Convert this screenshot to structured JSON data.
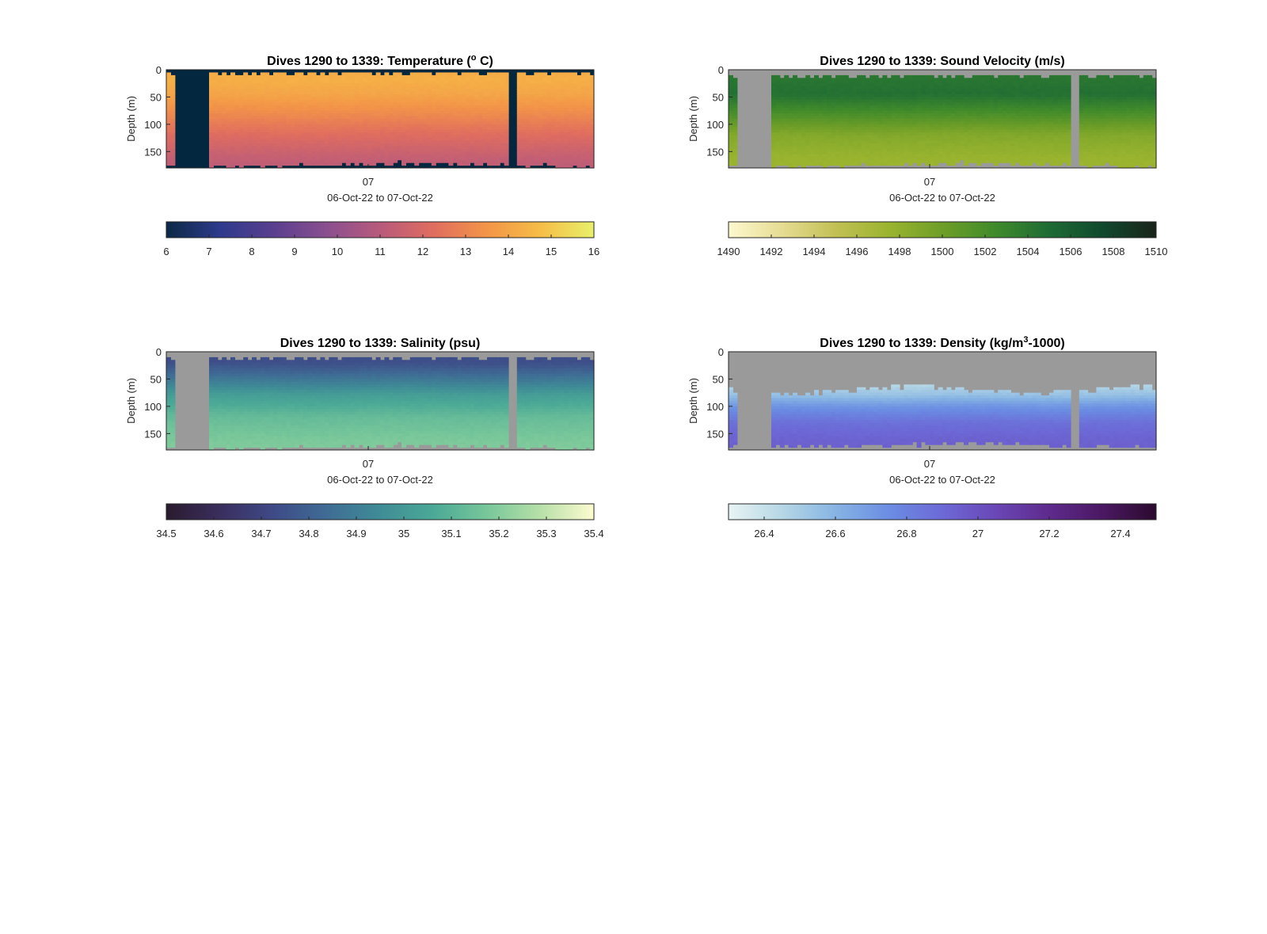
{
  "chart_data": [
    {
      "type": "heatmap",
      "title_prefix": "Dives 1290 to 1339: Temperature (",
      "title_sup": "o",
      "title_suffix": " C)",
      "ylabel": "Depth (m)",
      "yticks": [
        "0",
        "50",
        "100",
        "150"
      ],
      "ylim": [
        0,
        180
      ],
      "y_reversed": true,
      "xtick": "07",
      "xlabel": "06-Oct-22 to 07-Oct-22",
      "colorbar": {
        "range": [
          6,
          16
        ],
        "ticks": [
          "6",
          "7",
          "8",
          "9",
          "10",
          "11",
          "12",
          "13",
          "14",
          "15",
          "16"
        ]
      },
      "colormap": [
        "#0b2945",
        "#2e3a8c",
        "#5a3e8f",
        "#8a4f8f",
        "#b85a7c",
        "#e06d5f",
        "#f39548",
        "#f6bd47",
        "#e8f06a"
      ],
      "missing_color": "#042740",
      "profile": {
        "depths": [
          0,
          20,
          45,
          80,
          120,
          160,
          180
        ],
        "values": [
          14.2,
          14.3,
          14.0,
          13.2,
          12.2,
          11.4,
          11.2
        ]
      },
      "gaps": [
        [
          0.02,
          0.1
        ],
        [
          0.8,
          0.82
        ]
      ],
      "surface_gap_m": 8,
      "bottom_m": 175
    },
    {
      "type": "heatmap",
      "title": "Dives 1290 to 1339: Sound Velocity (m/s)",
      "ylabel": "Depth (m)",
      "yticks": [
        "0",
        "50",
        "100",
        "150"
      ],
      "ylim": [
        0,
        180
      ],
      "y_reversed": true,
      "xtick": "07",
      "xlabel": "06-Oct-22 to 07-Oct-22",
      "colorbar": {
        "range": [
          1490,
          1510
        ],
        "ticks": [
          "1490",
          "1492",
          "1494",
          "1496",
          "1498",
          "1500",
          "1502",
          "1504",
          "1506",
          "1508",
          "1510"
        ]
      },
      "colormap": [
        "#fdf8cf",
        "#e6dc93",
        "#c2c054",
        "#9ab42f",
        "#6e9e28",
        "#3f8a2b",
        "#1e6b35",
        "#10492d",
        "#1a2319"
      ],
      "missing_color": "#9a9a9a",
      "profile": {
        "depths": [
          0,
          20,
          45,
          80,
          120,
          160,
          180
        ],
        "values": [
          1503.8,
          1504.2,
          1504.6,
          1502.0,
          1498.8,
          1497.6,
          1497.4
        ]
      },
      "gaps": [
        [
          0.02,
          0.1
        ],
        [
          0.8,
          0.82
        ]
      ],
      "surface_gap_m": 12,
      "bottom_m": 175
    },
    {
      "type": "heatmap",
      "title": "Dives 1290 to 1339: Salinity (psu)",
      "ylabel": "Depth (m)",
      "yticks": [
        "0",
        "50",
        "100",
        "150"
      ],
      "ylim": [
        0,
        180
      ],
      "y_reversed": true,
      "xtick": "07",
      "xlabel": "06-Oct-22 to 07-Oct-22",
      "colorbar": {
        "range": [
          34.5,
          35.4
        ],
        "ticks": [
          "34.5",
          "34.6",
          "34.7",
          "34.8",
          "34.9",
          "35",
          "35.1",
          "35.2",
          "35.3",
          "35.4"
        ]
      },
      "colormap": [
        "#2a1b2e",
        "#3a2e5e",
        "#3e4a87",
        "#3f6c95",
        "#3f8c96",
        "#4ba996",
        "#78c79a",
        "#b7e0a8",
        "#fdfbd0"
      ],
      "missing_color": "#9a9a9a",
      "profile": {
        "depths": [
          0,
          20,
          45,
          80,
          120,
          160,
          180
        ],
        "values": [
          34.74,
          34.74,
          34.85,
          35.02,
          35.13,
          35.18,
          35.19
        ]
      },
      "gaps": [
        [
          0.02,
          0.1
        ],
        [
          0.8,
          0.82
        ]
      ],
      "surface_gap_m": 12,
      "bottom_m": 175
    },
    {
      "type": "heatmap",
      "title_prefix": "Dives 1290 to 1339: Density (kg/m",
      "title_sup": "3",
      "title_suffix": "-1000)",
      "ylabel": "Depth (m)",
      "yticks": [
        "0",
        "50",
        "100",
        "150"
      ],
      "ylim": [
        0,
        180
      ],
      "y_reversed": true,
      "xtick": "07",
      "xlabel": "06-Oct-22 to 07-Oct-22",
      "colorbar": {
        "range": [
          26.3,
          27.5
        ],
        "ticks": [
          "26.4",
          "26.6",
          "26.8",
          "27",
          "27.2",
          "27.4"
        ]
      },
      "colormap": [
        "#e8f4f4",
        "#b6d7e5",
        "#86b4e3",
        "#6b8de3",
        "#6c69d6",
        "#6a47b6",
        "#5e2a8d",
        "#4a1862",
        "#2c0a2e"
      ],
      "missing_color": "#9a9a9a",
      "profile": {
        "depths": [
          60,
          80,
          100,
          130,
          160,
          180
        ],
        "values": [
          26.45,
          26.55,
          26.72,
          26.87,
          26.93,
          26.94
        ]
      },
      "gaps": [
        [
          0.02,
          0.1
        ],
        [
          0.8,
          0.82
        ]
      ],
      "surface_gap_m": 70,
      "bottom_m": 172
    }
  ]
}
